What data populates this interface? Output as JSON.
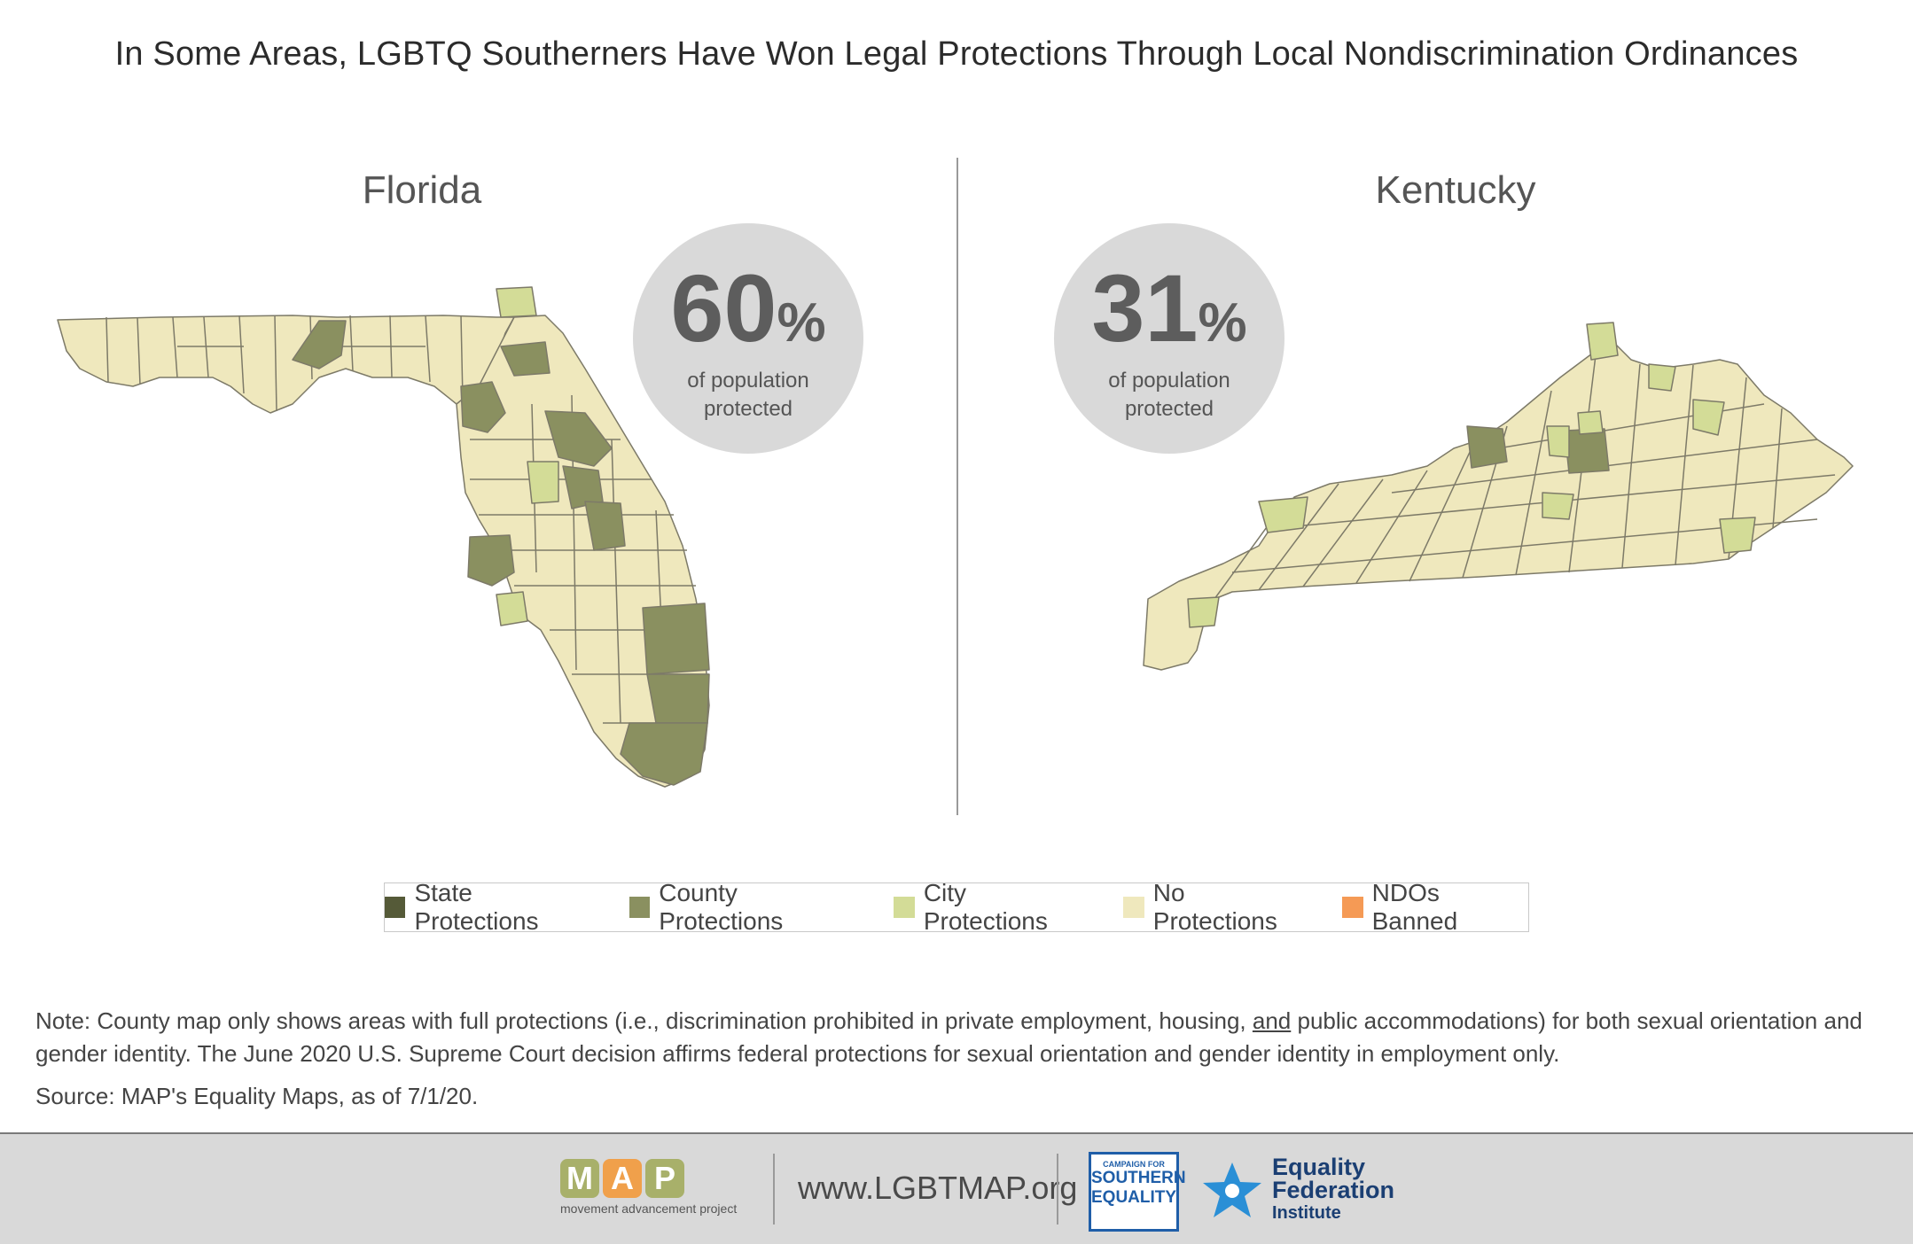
{
  "title": "In Some Areas, LGBTQ Southerners Have Won Legal Protections Through Local Nondiscrimination Ordinances",
  "florida": {
    "name": "Florida",
    "percent": "60",
    "percent_sign": "%",
    "subtext_line1": "of population",
    "subtext_line2": "protected"
  },
  "kentucky": {
    "name": "Kentucky",
    "percent": "31",
    "percent_sign": "%",
    "subtext_line1": "of population",
    "subtext_line2": "protected"
  },
  "legend": [
    {
      "label": "State Protections",
      "color": "#555a38"
    },
    {
      "label": "County Protections",
      "color": "#8a9060"
    },
    {
      "label": "City Protections",
      "color": "#d3dc97"
    },
    {
      "label": "No Protections",
      "color": "#efe8bd"
    },
    {
      "label": "NDOs Banned",
      "color": "#f59a55"
    }
  ],
  "colors": {
    "county": "#8a9060",
    "city": "#d3dc97",
    "none": "#efe8bd",
    "border": "#7d7a68"
  },
  "note": {
    "text_before": "Note: County map only shows areas with full protections (i.e., discrimination prohibited in private employment, housing, ",
    "underlined": "and",
    "text_after": " public accommodations) for both sexual orientation and gender identity. The June 2020 U.S. Supreme Court decision affirms federal protections for sexual orientation and gender identity in employment only."
  },
  "source": "Source: MAP's Equality Maps, as of 7/1/20.",
  "footer": {
    "map_letters": [
      "M",
      "A",
      "P"
    ],
    "map_colors": [
      "#a8b06a",
      "#f0a04b",
      "#a8b06a"
    ],
    "map_tagline": "movement advancement project",
    "url": "www.LGBTMAP.org",
    "cse_small": "CAMPAIGN FOR",
    "cse_line1": "SOUTHERN",
    "cse_line2": "EQUALITY",
    "efi_line1": "Equality",
    "efi_line2": "Federation",
    "efi_line3": "Institute"
  }
}
